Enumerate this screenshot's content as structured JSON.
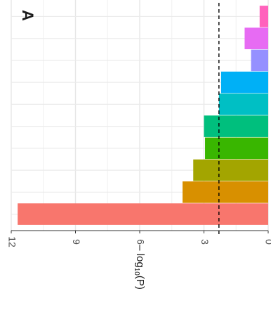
{
  "panel_label": "A",
  "chart_data": {
    "type": "bar",
    "orientation": "rotated-180",
    "ylabel_prefix": "– log",
    "ylabel_sub": "10",
    "ylabel_suffix": "(P)",
    "ylim": [
      0,
      12
    ],
    "yticks": [
      0,
      3,
      6,
      9,
      12
    ],
    "threshold": 2.3,
    "grid": true,
    "legend": "none",
    "values": [
      11.7,
      4.0,
      3.5,
      2.95,
      3.0,
      2.3,
      2.2,
      0.8,
      1.1,
      0.4
    ],
    "colors": [
      "#F8766D",
      "#D89000",
      "#A3A500",
      "#39B600",
      "#00BF7D",
      "#00BFC4",
      "#00B0F6",
      "#9590FF",
      "#E76BF3",
      "#FF62BC"
    ]
  }
}
